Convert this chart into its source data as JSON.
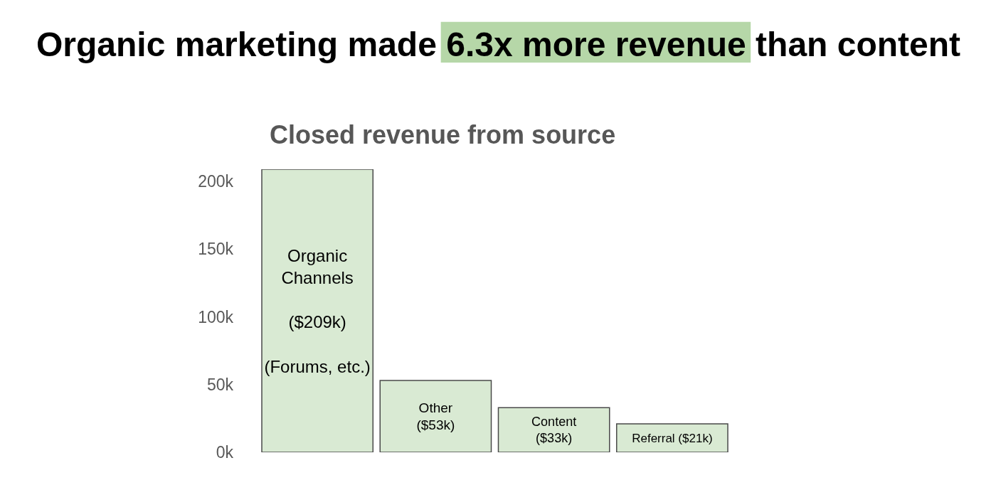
{
  "chart_data": {
    "type": "bar",
    "title": "Organic marketing made 6.3x more revenue than content",
    "subtitle": "Closed revenue from source",
    "categories": [
      null,
      null,
      null,
      null
    ],
    "values": [
      209,
      53,
      33,
      21
    ],
    "value_labels": [
      "Organic\nChannels\n\n($209k)\n\n(Forums, etc.)",
      "Other\n($53k)",
      "Content\n($33k)",
      "Referral ($21k)"
    ],
    "color": "#d9ead3",
    "ylim": [
      0,
      209
    ],
    "yticks": [
      {
        "value": 0,
        "label": "0k"
      },
      {
        "value": 50,
        "label": "50k"
      },
      {
        "value": 100,
        "label": "100k"
      },
      {
        "value": 150,
        "label": "150k"
      },
      {
        "value": 200,
        "label": "200k"
      }
    ],
    "tick_labels": "y"
  }
}
